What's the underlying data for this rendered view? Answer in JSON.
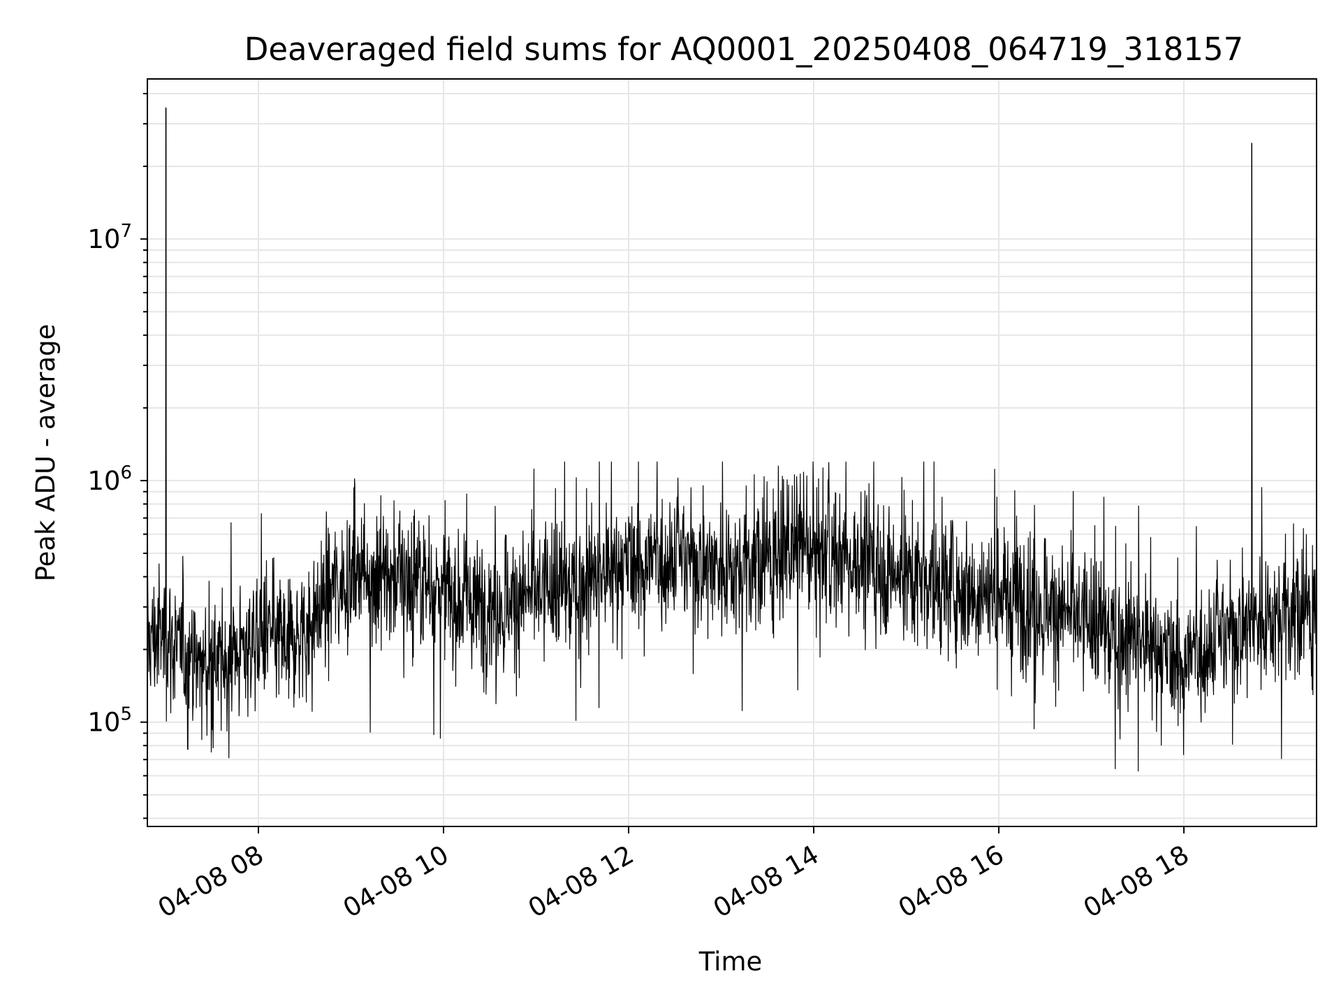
{
  "chart_data": {
    "type": "line",
    "title": "Deaveraged field sums for AQ0001_20250408_064719_318157",
    "xlabel": "Time",
    "ylabel": "Peak ADU - average",
    "x_scale": "time",
    "y_scale": "log",
    "xlim": [
      "2025-04-08 06:48",
      "2025-04-08 19:26"
    ],
    "ylim": [
      37000,
      46000000
    ],
    "grid": "on (major and minor)",
    "line_color": "#000000",
    "x_ticks": [
      {
        "time": "2025-04-08 08:00",
        "label": "04-08 08"
      },
      {
        "time": "2025-04-08 10:00",
        "label": "04-08 10"
      },
      {
        "time": "2025-04-08 12:00",
        "label": "04-08 12"
      },
      {
        "time": "2025-04-08 14:00",
        "label": "04-08 14"
      },
      {
        "time": "2025-04-08 16:00",
        "label": "04-08 16"
      },
      {
        "time": "2025-04-08 18:00",
        "label": "04-08 18"
      }
    ],
    "y_ticks": [
      {
        "value": 100000,
        "base": "10",
        "exp": "5"
      },
      {
        "value": 1000000,
        "base": "10",
        "exp": "6"
      },
      {
        "value": 10000000,
        "base": "10",
        "exp": "7"
      }
    ],
    "series": [
      {
        "x": [
          "06:48",
          "07:00",
          "07:10",
          "07:20",
          "07:30",
          "07:40",
          "07:50",
          "08:00",
          "08:10",
          "08:20",
          "08:30",
          "08:40",
          "08:50",
          "09:00",
          "09:10",
          "09:20",
          "09:30",
          "09:40",
          "09:50",
          "10:00",
          "10:10",
          "10:20",
          "10:30",
          "10:40",
          "10:50",
          "11:00",
          "11:10",
          "11:20",
          "11:30",
          "11:40",
          "11:50",
          "12:00",
          "12:10",
          "12:20",
          "12:30",
          "12:40",
          "12:50",
          "13:00",
          "13:10",
          "13:20",
          "13:30",
          "13:40",
          "13:50",
          "14:00",
          "14:10",
          "14:20",
          "14:30",
          "14:40",
          "14:50",
          "15:00",
          "15:10",
          "15:20",
          "15:30",
          "15:40",
          "15:50",
          "16:00",
          "16:10",
          "16:20",
          "16:30",
          "16:40",
          "16:50",
          "17:00",
          "17:10",
          "17:20",
          "17:30",
          "17:40",
          "17:50",
          "18:00",
          "18:10",
          "18:20",
          "18:30",
          "18:40",
          "18:50",
          "19:00",
          "19:10",
          "19:20",
          "19:26"
        ],
        "y": [
          220000,
          230000,
          190000,
          175000,
          165000,
          180000,
          200000,
          230000,
          220000,
          215000,
          240000,
          300000,
          370000,
          420000,
          430000,
          420000,
          410000,
          400000,
          380000,
          350000,
          320000,
          300000,
          310000,
          320000,
          330000,
          340000,
          350000,
          360000,
          380000,
          400000,
          420000,
          440000,
          460000,
          480000,
          490000,
          480000,
          460000,
          450000,
          440000,
          460000,
          480000,
          500000,
          520000,
          530000,
          500000,
          480000,
          460000,
          440000,
          420000,
          400000,
          390000,
          380000,
          370000,
          360000,
          350000,
          340000,
          330000,
          320000,
          310000,
          290000,
          270000,
          250000,
          240000,
          230000,
          220000,
          200000,
          180000,
          180000,
          200000,
          220000,
          240000,
          260000,
          270000,
          280000,
          290000,
          290000,
          280000
        ],
        "spikes": [
          {
            "x": "07:00",
            "y": 35000000
          },
          {
            "x": "18:44",
            "y": 25000000
          }
        ],
        "noise_band": {
          "low": 50000,
          "high": 1200000
        }
      }
    ]
  }
}
